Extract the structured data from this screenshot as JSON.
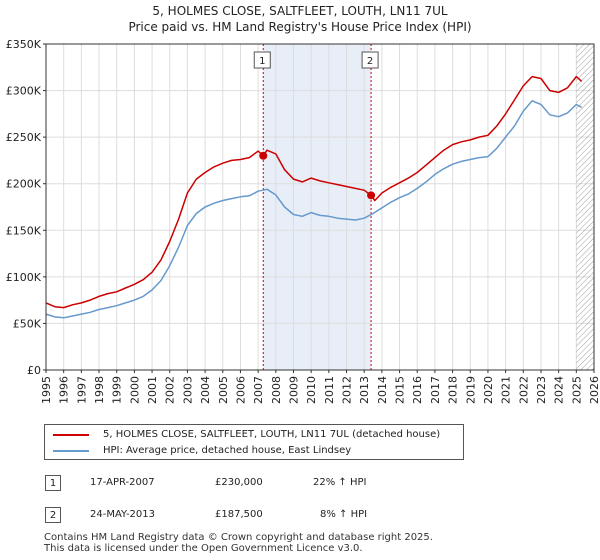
{
  "title_line1": "5, HOLMES CLOSE, SALTFLEET, LOUTH, LN11 7UL",
  "title_line2": "Price paid vs. HM Land Registry's House Price Index (HPI)",
  "colors": {
    "property": "#cc0000",
    "hpi": "#6699cc",
    "shade": "#e8eef8",
    "grid": "#dddddd"
  },
  "legend": {
    "property_label": "5, HOLMES CLOSE, SALTFLEET, LOUTH, LN11 7UL (detached house)",
    "hpi_label": "HPI: Average price, detached house, East Lindsey"
  },
  "sales": [
    {
      "num": "1",
      "date": "17-APR-2007",
      "price": "£230,000",
      "hpi_change": "22% ↑ HPI"
    },
    {
      "num": "2",
      "date": "24-MAY-2013",
      "price": "£187,500",
      "hpi_change": "8% ↑ HPI"
    }
  ],
  "footer_line1": "Contains HM Land Registry data © Crown copyright and database right 2025.",
  "footer_line2": "This data is licensed under the Open Government Licence v3.0.",
  "chart_data": {
    "type": "line",
    "title": "Price paid vs. HM Land Registry's House Price Index (HPI)",
    "xlim": [
      1995,
      2026
    ],
    "ylim": [
      0,
      350000
    ],
    "x_ticks": [
      "1995",
      "1996",
      "1997",
      "1998",
      "1999",
      "2000",
      "2001",
      "2002",
      "2003",
      "2004",
      "2005",
      "2006",
      "2007",
      "2008",
      "2009",
      "2010",
      "2011",
      "2012",
      "2013",
      "2014",
      "2015",
      "2016",
      "2017",
      "2018",
      "2019",
      "2020",
      "2021",
      "2022",
      "2023",
      "2024",
      "2025",
      "2026"
    ],
    "y_ticks": [
      {
        "value": 0,
        "label": "£0"
      },
      {
        "value": 50000,
        "label": "£50K"
      },
      {
        "value": 100000,
        "label": "£100K"
      },
      {
        "value": 150000,
        "label": "£150K"
      },
      {
        "value": 200000,
        "label": "£200K"
      },
      {
        "value": 250000,
        "label": "£250K"
      },
      {
        "value": 300000,
        "label": "£300K"
      },
      {
        "value": 350000,
        "label": "£350K"
      }
    ],
    "shaded_period": [
      2007.29,
      2013.39
    ],
    "hatched_from": 2025.0,
    "series": [
      {
        "name": "5, HOLMES CLOSE, SALTFLEET, LOUTH, LN11 7UL (detached house)",
        "x": [
          1995,
          1995.5,
          1996,
          1996.5,
          1997,
          1997.5,
          1998,
          1998.5,
          1999,
          1999.5,
          2000,
          2000.5,
          2001,
          2001.5,
          2002,
          2002.5,
          2003,
          2003.5,
          2004,
          2004.5,
          2005,
          2005.5,
          2006,
          2006.5,
          2007,
          2007.29,
          2007.5,
          2008,
          2008.5,
          2009,
          2009.5,
          2010,
          2010.5,
          2011,
          2011.5,
          2012,
          2012.5,
          2013,
          2013.39,
          2013.6,
          2014,
          2014.5,
          2015,
          2015.5,
          2016,
          2016.5,
          2017,
          2017.5,
          2018,
          2018.5,
          2019,
          2019.5,
          2020,
          2020.5,
          2021,
          2021.5,
          2022,
          2022.5,
          2023,
          2023.5,
          2024,
          2024.5,
          2025,
          2025.3
        ],
        "y": [
          72000,
          68000,
          67000,
          70000,
          72000,
          75000,
          79000,
          82000,
          84000,
          88000,
          92000,
          97000,
          105000,
          118000,
          138000,
          162000,
          190000,
          205000,
          212000,
          218000,
          222000,
          225000,
          226000,
          228000,
          235000,
          230000,
          236000,
          232000,
          215000,
          205000,
          202000,
          206000,
          203000,
          201000,
          199000,
          197000,
          195000,
          193000,
          187500,
          182000,
          190000,
          196000,
          201000,
          206000,
          212000,
          220000,
          228000,
          236000,
          242000,
          245000,
          247000,
          250000,
          252000,
          262000,
          275000,
          290000,
          305000,
          315000,
          313000,
          300000,
          298000,
          303000,
          315000,
          310000
        ]
      },
      {
        "name": "HPI: Average price, detached house, East Lindsey",
        "x": [
          1995,
          1995.5,
          1996,
          1996.5,
          1997,
          1997.5,
          1998,
          1998.5,
          1999,
          1999.5,
          2000,
          2000.5,
          2001,
          2001.5,
          2002,
          2002.5,
          2003,
          2003.5,
          2004,
          2004.5,
          2005,
          2005.5,
          2006,
          2006.5,
          2007,
          2007.5,
          2008,
          2008.5,
          2009,
          2009.5,
          2010,
          2010.5,
          2011,
          2011.5,
          2012,
          2012.5,
          2013,
          2013.5,
          2014,
          2014.5,
          2015,
          2015.5,
          2016,
          2016.5,
          2017,
          2017.5,
          2018,
          2018.5,
          2019,
          2019.5,
          2020,
          2020.5,
          2021,
          2021.5,
          2022,
          2022.5,
          2023,
          2023.5,
          2024,
          2024.5,
          2025,
          2025.3
        ],
        "y": [
          60000,
          57000,
          56000,
          58000,
          60000,
          62000,
          65000,
          67000,
          69000,
          72000,
          75000,
          79000,
          86000,
          96000,
          112000,
          132000,
          155000,
          168000,
          175000,
          179000,
          182000,
          184000,
          186000,
          187000,
          192000,
          194000,
          188000,
          175000,
          167000,
          165000,
          169000,
          166000,
          165000,
          163000,
          162000,
          161000,
          163000,
          168000,
          174000,
          180000,
          185000,
          189000,
          195000,
          202000,
          210000,
          216000,
          221000,
          224000,
          226000,
          228000,
          229000,
          238000,
          250000,
          262000,
          278000,
          289000,
          285000,
          274000,
          272000,
          276000,
          285000,
          282000
        ]
      }
    ],
    "sale_markers": [
      {
        "label": "1",
        "x": 2007.29,
        "y": 230000
      },
      {
        "label": "2",
        "x": 2013.39,
        "y": 187500
      }
    ]
  }
}
